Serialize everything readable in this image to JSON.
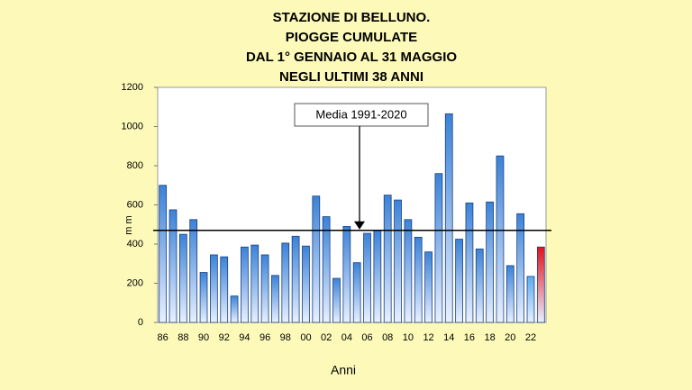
{
  "chart_data": {
    "type": "bar",
    "title_lines": [
      "STAZIONE DI BELLUNO.",
      "PIOGGE CUMULATE",
      "DAL 1° GENNAIO AL 31 MAGGIO",
      "NEGLI ULTIMI 38 ANNI"
    ],
    "x_label": "Anni",
    "y_label": "m m",
    "categories": [
      "86",
      null,
      "88",
      null,
      "90",
      null,
      "92",
      null,
      "94",
      null,
      "96",
      null,
      "98",
      null,
      "00",
      null,
      "02",
      null,
      "04",
      null,
      "06",
      null,
      "08",
      null,
      "10",
      null,
      "12",
      null,
      "14",
      null,
      "16",
      null,
      "18",
      null,
      "20",
      null,
      "22",
      null
    ],
    "values": [
      700,
      575,
      450,
      525,
      255,
      345,
      335,
      135,
      385,
      395,
      345,
      240,
      405,
      440,
      390,
      645,
      540,
      225,
      490,
      305,
      455,
      470,
      650,
      625,
      525,
      435,
      360,
      760,
      1065,
      425,
      610,
      375,
      615,
      850,
      290,
      555,
      235,
      385
    ],
    "colors": [
      "#3b82d8",
      "#3b82d8",
      "#3b82d8",
      "#3b82d8",
      "#3b82d8",
      "#3b82d8",
      "#3b82d8",
      "#3b82d8",
      "#3b82d8",
      "#3b82d8",
      "#3b82d8",
      "#3b82d8",
      "#3b82d8",
      "#3b82d8",
      "#3b82d8",
      "#3b82d8",
      "#3b82d8",
      "#3b82d8",
      "#3b82d8",
      "#3b82d8",
      "#3b82d8",
      "#3b82d8",
      "#3b82d8",
      "#3b82d8",
      "#3b82d8",
      "#3b82d8",
      "#3b82d8",
      "#3b82d8",
      "#3b82d8",
      "#3b82d8",
      "#3b82d8",
      "#3b82d8",
      "#3b82d8",
      "#3b82d8",
      "#3b82d8",
      "#3b82d8",
      "#5aaaf0",
      "#e0141e"
    ],
    "mean": {
      "value": 470,
      "label": "Media 1991-2020"
    },
    "ylim": [
      0,
      1200
    ],
    "yticks": [
      0,
      200,
      400,
      600,
      800,
      1000,
      1200
    ]
  }
}
